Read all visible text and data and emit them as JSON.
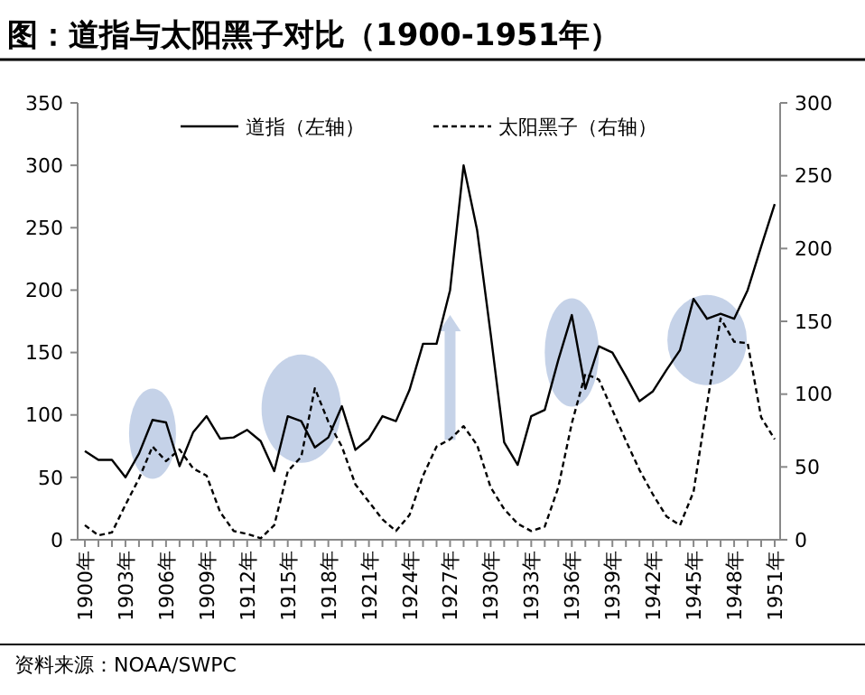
{
  "chart_data": {
    "type": "line",
    "title": "图：道指与太阳黑子对比（1900-1951年）",
    "categories": [
      "1900年",
      null,
      null,
      "1903年",
      null,
      null,
      "1906年",
      null,
      null,
      "1909年",
      null,
      null,
      "1912年",
      null,
      null,
      "1915年",
      null,
      null,
      "1918年",
      null,
      null,
      "1921年",
      null,
      null,
      "1924年",
      null,
      null,
      "1927年",
      null,
      null,
      "1930年",
      null,
      null,
      "1933年",
      null,
      null,
      "1936年",
      null,
      null,
      "1939年",
      null,
      null,
      "1942年",
      null,
      null,
      "1945年",
      null,
      null,
      "1948年",
      null,
      null,
      "1951年"
    ],
    "series": [
      {
        "name": "道指（左轴）",
        "color": "#000000",
        "line_style": "solid",
        "values": [
          71,
          64,
          64,
          50,
          69,
          96,
          94,
          59,
          86,
          99,
          81,
          82,
          88,
          79,
          55,
          99,
          95,
          74,
          82,
          107,
          72,
          81,
          99,
          95,
          120,
          157,
          157,
          200,
          300,
          248,
          165,
          78,
          60,
          99,
          104,
          144,
          180,
          121,
          155,
          150,
          131,
          111,
          119,
          136,
          152,
          193,
          177,
          181,
          177,
          200,
          235,
          269
        ]
      },
      {
        "name": "太阳黑子（右轴）",
        "color": "#000000",
        "line_style": "dashed",
        "axis": "y2",
        "values": [
          10,
          3,
          5,
          24,
          42,
          64,
          54,
          62,
          49,
          44,
          19,
          6,
          4,
          1,
          10,
          47,
          57,
          104,
          81,
          64,
          38,
          26,
          14,
          6,
          17,
          44,
          64,
          69,
          78,
          65,
          36,
          21,
          11,
          6,
          9,
          36,
          80,
          114,
          110,
          89,
          68,
          48,
          31,
          16,
          10,
          33,
          93,
          152,
          136,
          135,
          84,
          69
        ]
      }
    ],
    "ylim": [
      0,
      350
    ],
    "yticks": [
      0,
      50,
      100,
      150,
      200,
      250,
      300,
      350
    ],
    "y2lim": [
      0,
      300
    ],
    "y2ticks": [
      0,
      50,
      100,
      150,
      200,
      250,
      300
    ],
    "legend": "top",
    "annotations": [
      "资料来源：NOAA/SWPC"
    ]
  }
}
